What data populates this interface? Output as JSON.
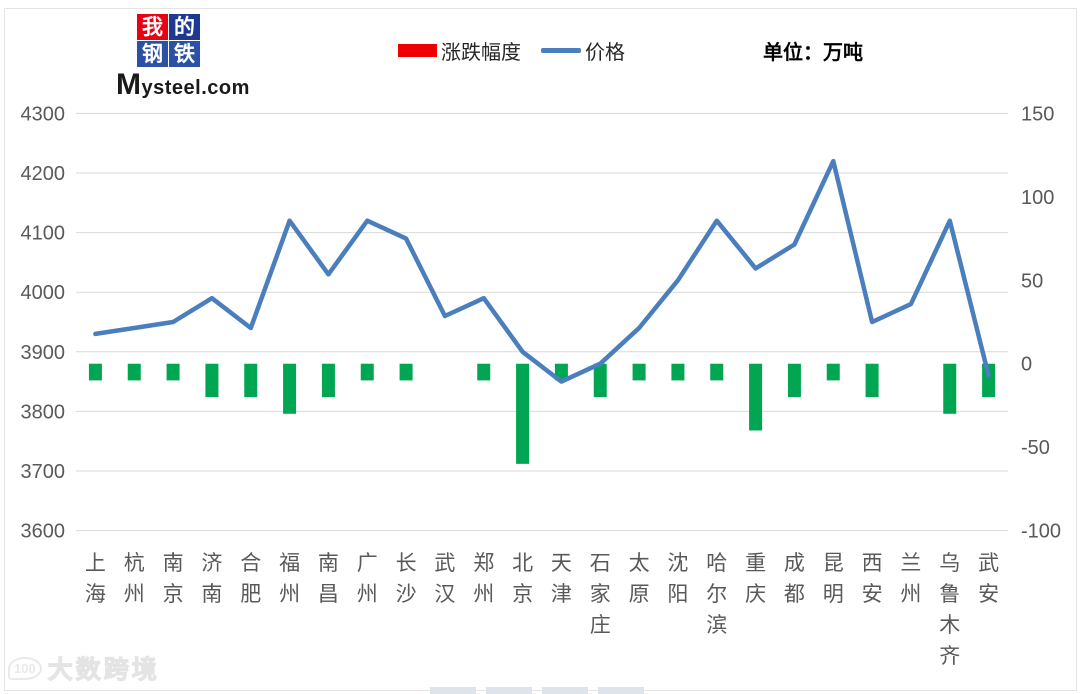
{
  "logo": {
    "grid": [
      "我",
      "的",
      "钢",
      "铁"
    ],
    "wordmark": "Mysteel.com",
    "red": "#e60315",
    "navy": "#1e3a90",
    "blue": "#2b51a5"
  },
  "legend": {
    "items": [
      {
        "label": "涨跌幅度",
        "swatch": "bar-swatch",
        "color": "#ee0000"
      },
      {
        "label": "价格",
        "swatch": "line-swatch",
        "color": "#4a7ebc"
      }
    ]
  },
  "unit_label": "单位：万吨",
  "watermark": {
    "badge": "100",
    "brand": "大数跨境"
  },
  "chart_data": {
    "type": "bar+line combo",
    "title": "",
    "xlabel": "",
    "ylabel": "",
    "grid": true,
    "legend_position": "top",
    "categories": [
      "上海",
      "杭州",
      "南京",
      "济南",
      "合肥",
      "福州",
      "南昌",
      "广州",
      "长沙",
      "武汉",
      "郑州",
      "北京",
      "天津",
      "石家庄",
      "太原",
      "沈阳",
      "哈尔滨",
      "重庆",
      "成都",
      "昆明",
      "西安",
      "兰州",
      "乌鲁木齐",
      "武安"
    ],
    "series": [
      {
        "name": "涨跌幅度",
        "type": "bar",
        "axis": "right",
        "color": "#00a651",
        "values": [
          -10,
          -10,
          -10,
          -20,
          -20,
          -30,
          -20,
          -10,
          -10,
          0,
          -10,
          -60,
          -10,
          -20,
          -10,
          -10,
          -10,
          -40,
          -20,
          -10,
          -20,
          0,
          -30,
          -20
        ]
      },
      {
        "name": "价格",
        "type": "line",
        "axis": "left",
        "color": "#4a7ebc",
        "values": [
          3930,
          3940,
          3950,
          3990,
          3940,
          4120,
          4030,
          4120,
          4090,
          3960,
          3990,
          3900,
          3850,
          3880,
          3940,
          4020,
          4120,
          4040,
          4080,
          4220,
          3950,
          3980,
          4120,
          3860
        ]
      }
    ],
    "left_axis": {
      "min": 3600,
      "max": 4300,
      "ticks": [
        4300,
        4200,
        4100,
        4000,
        3900,
        3800,
        3700,
        3600
      ]
    },
    "right_axis": {
      "min": -100,
      "max": 150,
      "ticks": [
        150,
        100,
        50,
        0,
        -50,
        -100
      ]
    }
  }
}
